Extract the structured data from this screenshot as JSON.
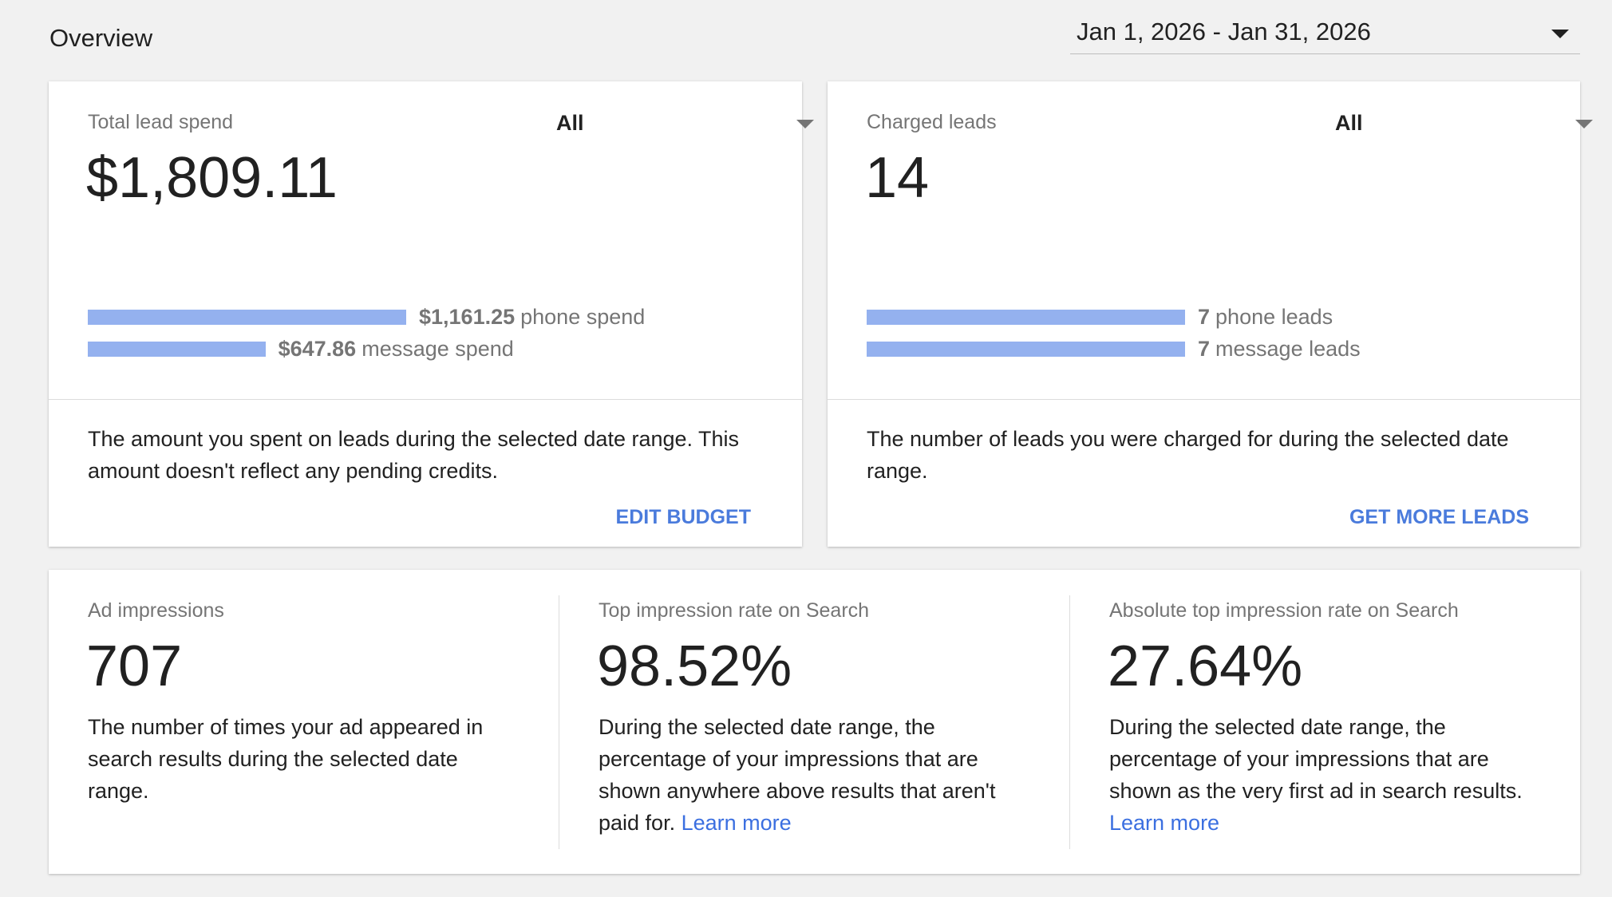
{
  "header": {
    "title": "Overview",
    "date_range": "Jan 1, 2026 - Jan 31, 2026"
  },
  "cards": [
    {
      "label": "Total lead spend",
      "filter": "All",
      "total": "$1,809.11",
      "breakdown": [
        {
          "value": 1161.25,
          "label": "$1,161.25",
          "text": "phone spend"
        },
        {
          "value": 647.86,
          "label": "$647.86",
          "text": "message spend"
        }
      ],
      "description": "The amount you spent on leads during the selected date range. This amount doesn't reflect any pending credits.",
      "action": "EDIT BUDGET"
    },
    {
      "label": "Charged leads",
      "filter": "All",
      "total": 14,
      "breakdown": [
        {
          "value": 7,
          "text": "phone leads"
        },
        {
          "value": 7,
          "text": "message leads"
        }
      ],
      "description": "The number of leads you were charged for during the selected date range.",
      "action": "GET MORE LEADS"
    }
  ],
  "metrics": [
    {
      "label": "Ad impressions",
      "value": 707,
      "description": "The number of times your ad appeared in search results during the selected date range."
    },
    {
      "label": "Top impression rate on Search",
      "value": "98.52%",
      "description": "During the selected date range, the percentage of your impressions that are shown anywhere above results that aren't paid for.",
      "link": "Learn more"
    },
    {
      "label": "Absolute top impression rate on Search",
      "value": "27.64%",
      "description": "During the selected date range, the percentage of your impressions that are shown as the very first ad in search results.",
      "link": "Learn more"
    }
  ]
}
